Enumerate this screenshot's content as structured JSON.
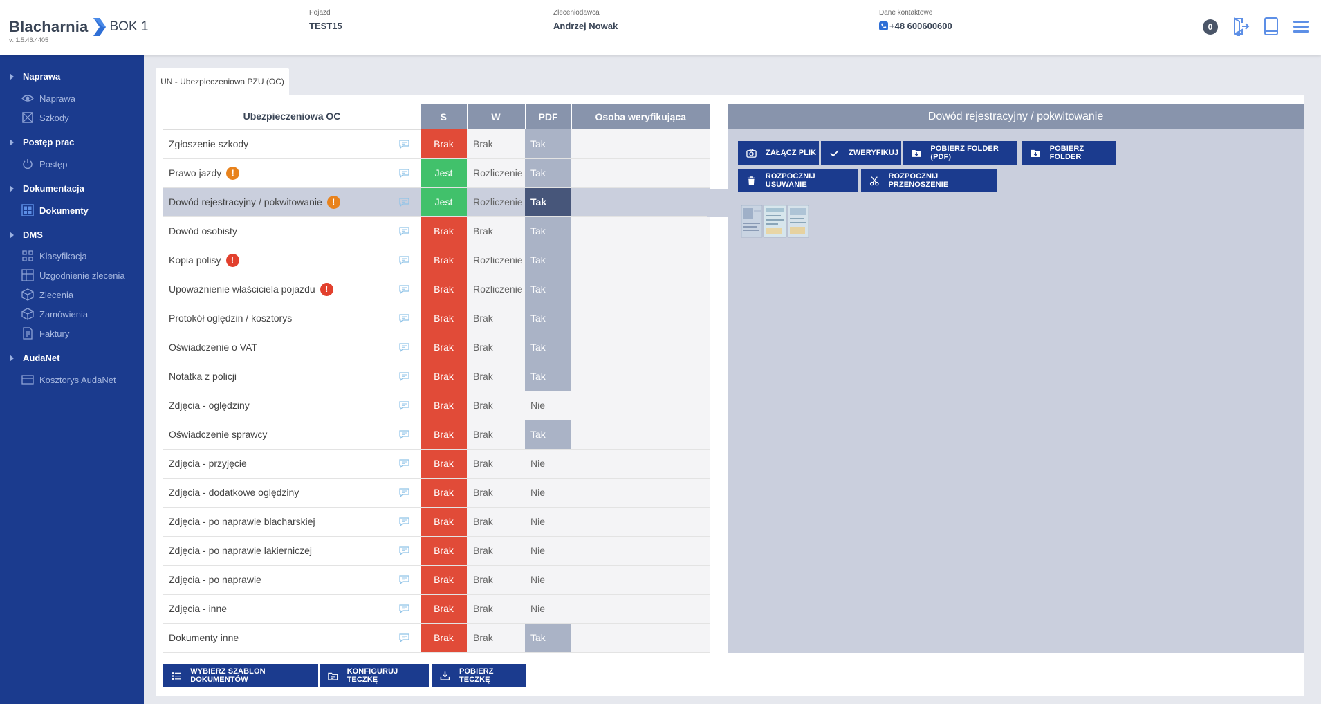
{
  "header": {
    "app_name": "Blacharnia",
    "station": "BOK 1",
    "version": "v: 1.5.46.4405",
    "vehicle_label": "Pojazd",
    "vehicle_value": "TEST15",
    "client_label": "Zleceniodawca",
    "client_value": "Andrzej Nowak",
    "contact_label": "Dane kontaktowe",
    "contact_value": "+48 600600600",
    "notifications": "0"
  },
  "sidebar": {
    "sections": [
      {
        "label": "Naprawa",
        "items": [
          "Naprawa",
          "Szkody"
        ]
      },
      {
        "label": "Postęp prac",
        "items": [
          "Postęp"
        ]
      },
      {
        "label": "Dokumentacja",
        "items": [
          "Dokumenty"
        ]
      },
      {
        "label": "DMS",
        "items": [
          "Klasyfikacja",
          "Uzgodnienie zlecenia",
          "Zlecenia",
          "Zamówienia",
          "Faktury"
        ]
      },
      {
        "label": "AudaNet",
        "items": [
          "Kosztorys AudaNet"
        ]
      }
    ],
    "active_item": "Dokumenty"
  },
  "tab": {
    "label": "UN - Ubezpieczeniowa PZU (OC)"
  },
  "table": {
    "headers": {
      "name": "Ubezpieczeniowa OC",
      "s": "S",
      "w": "W",
      "pdf": "PDF",
      "person": "Osoba weryfikująca"
    },
    "rows": [
      {
        "name": "Zgłoszenie szkody",
        "warn": "",
        "s": "Brak",
        "w": "Brak",
        "pdf": "Tak"
      },
      {
        "name": "Prawo jazdy",
        "warn": "orange",
        "s": "Jest",
        "w": "Rozliczenie",
        "pdf": "Tak"
      },
      {
        "name": "Dowód rejestracyjny / pokwitowanie",
        "warn": "orange",
        "s": "Jest",
        "w": "Rozliczenie",
        "pdf": "Tak",
        "selected": true
      },
      {
        "name": "Dowód osobisty",
        "warn": "",
        "s": "Brak",
        "w": "Brak",
        "pdf": "Tak"
      },
      {
        "name": "Kopia polisy",
        "warn": "red",
        "s": "Brak",
        "w": "Rozliczenie",
        "pdf": "Tak"
      },
      {
        "name": "Upoważnienie właściciela pojazdu",
        "warn": "red",
        "s": "Brak",
        "w": "Rozliczenie",
        "pdf": "Tak"
      },
      {
        "name": "Protokół oględzin / kosztorys",
        "warn": "",
        "s": "Brak",
        "w": "Brak",
        "pdf": "Tak"
      },
      {
        "name": "Oświadczenie o VAT",
        "warn": "",
        "s": "Brak",
        "w": "Brak",
        "pdf": "Tak"
      },
      {
        "name": "Notatka z policji",
        "warn": "",
        "s": "Brak",
        "w": "Brak",
        "pdf": "Tak"
      },
      {
        "name": "Zdjęcia - oględziny",
        "warn": "",
        "s": "Brak",
        "w": "Brak",
        "pdf": "Nie"
      },
      {
        "name": "Oświadczenie sprawcy",
        "warn": "",
        "s": "Brak",
        "w": "Brak",
        "pdf": "Tak"
      },
      {
        "name": "Zdjęcia - przyjęcie",
        "warn": "",
        "s": "Brak",
        "w": "Brak",
        "pdf": "Nie"
      },
      {
        "name": "Zdjęcia - dodatkowe oględziny",
        "warn": "",
        "s": "Brak",
        "w": "Brak",
        "pdf": "Nie"
      },
      {
        "name": "Zdjęcia - po naprawie blacharskiej",
        "warn": "",
        "s": "Brak",
        "w": "Brak",
        "pdf": "Nie"
      },
      {
        "name": "Zdjęcia - po naprawie lakierniczej",
        "warn": "",
        "s": "Brak",
        "w": "Brak",
        "pdf": "Nie"
      },
      {
        "name": "Zdjęcia - po naprawie",
        "warn": "",
        "s": "Brak",
        "w": "Brak",
        "pdf": "Nie"
      },
      {
        "name": "Zdjęcia - inne",
        "warn": "",
        "s": "Brak",
        "w": "Brak",
        "pdf": "Nie"
      },
      {
        "name": "Dokumenty inne",
        "warn": "",
        "s": "Brak",
        "w": "Brak",
        "pdf": "Tak"
      }
    ],
    "warn_symbol": "!"
  },
  "right_panel": {
    "title": "Dowód rejestracyjny / pokwitowanie",
    "buttons": {
      "attach": "ZAŁĄCZ PLIK",
      "verify": "ZWERYFIKUJ",
      "download_pdf": "POBIERZ FOLDER (PDF)",
      "download_folder": "POBIERZ FOLDER",
      "start_delete": "ROZPOCZNIJ USUWANIE",
      "start_move": "ROZPOCZNIJ PRZENOSZENIE"
    }
  },
  "bottom_buttons": {
    "template": "WYBIERZ SZABLON DOKUMENTÓW",
    "configure": "KONFIGURUJ TECZKĘ",
    "download": "POBIERZ TECZKĘ"
  },
  "colors": {
    "sidebar_bg": "#1b3b8e",
    "brak": "#e14b38",
    "jest": "#41c16b",
    "pdf_tak": "#aab3c6",
    "header_slate": "#8894ac",
    "warn_orange": "#e8821c",
    "warn_red": "#e2402d"
  }
}
